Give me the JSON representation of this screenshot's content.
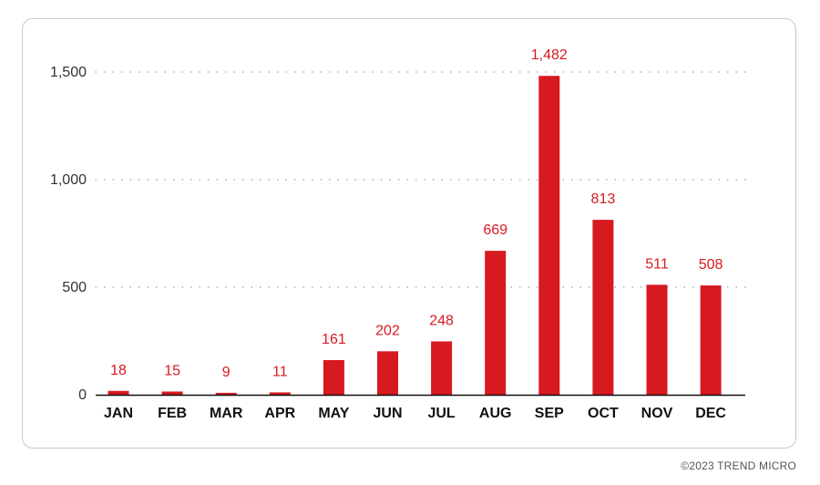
{
  "chart_data": {
    "type": "bar",
    "categories": [
      "JAN",
      "FEB",
      "MAR",
      "APR",
      "MAY",
      "JUN",
      "JUL",
      "AUG",
      "SEP",
      "OCT",
      "NOV",
      "DEC"
    ],
    "values": [
      18,
      15,
      9,
      11,
      161,
      202,
      248,
      669,
      1482,
      813,
      511,
      508
    ],
    "value_labels": [
      "18",
      "15",
      "9",
      "11",
      "161",
      "202",
      "248",
      "669",
      "1,482",
      "813",
      "511",
      "508"
    ],
    "yticks": [
      0,
      500,
      1000,
      1500
    ],
    "ytick_labels": [
      "0",
      "500",
      "1,000",
      "1,500"
    ],
    "ylim": [
      0,
      1500
    ],
    "grid": "dotted-horizontal",
    "bar_color": "#D71920",
    "label_color": "#D71920",
    "title": "",
    "xlabel": "",
    "ylabel": ""
  },
  "footer": {
    "copyright": "©2023 TREND MICRO"
  }
}
